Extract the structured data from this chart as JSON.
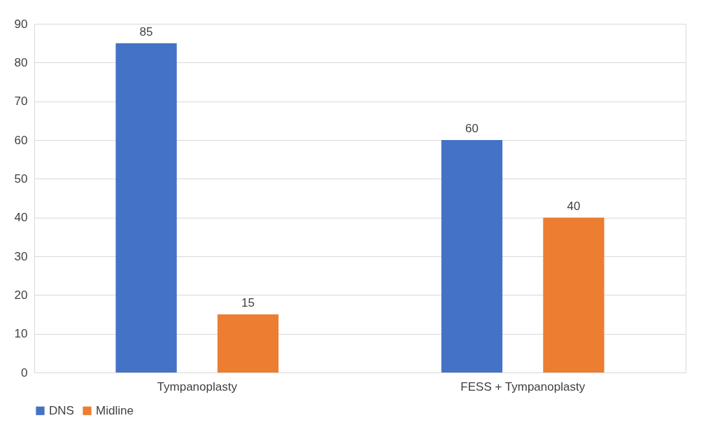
{
  "chart_data": {
    "type": "bar",
    "categories": [
      "Tympanoplasty",
      "FESS + Tympanoplasty"
    ],
    "series": [
      {
        "name": "DNS",
        "color": "#4472c4",
        "values": [
          85,
          60
        ]
      },
      {
        "name": "Midline",
        "color": "#ed7d31",
        "values": [
          15,
          40
        ]
      }
    ],
    "ylim": [
      0,
      90
    ],
    "yticks": [
      0,
      10,
      20,
      30,
      40,
      50,
      60,
      70,
      80,
      90
    ],
    "grid": "y",
    "data_labels": true,
    "legend": "bottom"
  }
}
